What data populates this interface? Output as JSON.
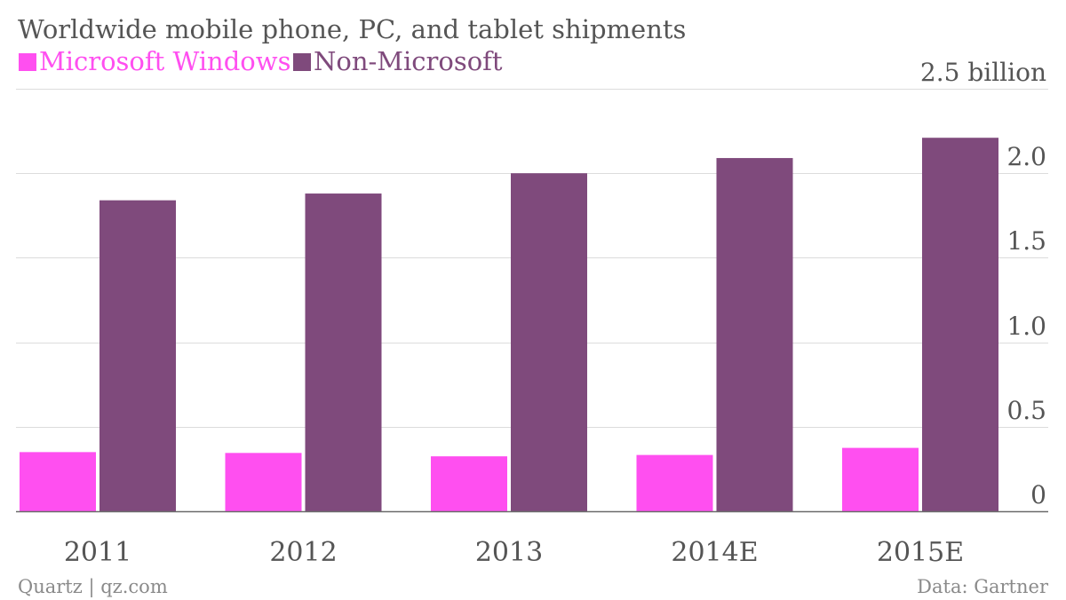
{
  "chart_data": {
    "type": "bar",
    "title": "Worldwide mobile phone, PC, and tablet shipments",
    "categories": [
      "2011",
      "2012",
      "2013",
      "2014E",
      "2015E"
    ],
    "series": [
      {
        "name": "Microsoft Windows",
        "color": "#ff4ff0",
        "values": [
          0.35,
          0.345,
          0.325,
          0.333,
          0.375
        ]
      },
      {
        "name": "Non-Microsoft",
        "color": "#7f4a7c",
        "values": [
          1.84,
          1.88,
          2.0,
          2.09,
          2.21
        ]
      }
    ],
    "ylim": [
      0,
      2.5
    ],
    "yticks": [
      {
        "value": 0,
        "label": "0"
      },
      {
        "value": 0.5,
        "label": "0.5"
      },
      {
        "value": 1.0,
        "label": "1.0"
      },
      {
        "value": 1.5,
        "label": "1.5"
      },
      {
        "value": 2.0,
        "label": "2.0"
      },
      {
        "value": 2.5,
        "label": "2.5 billion"
      }
    ],
    "legend_position": "top-left",
    "grid": true,
    "axis_position": "right",
    "source": "Data: Gartner",
    "credit": "Quartz | qz.com"
  }
}
